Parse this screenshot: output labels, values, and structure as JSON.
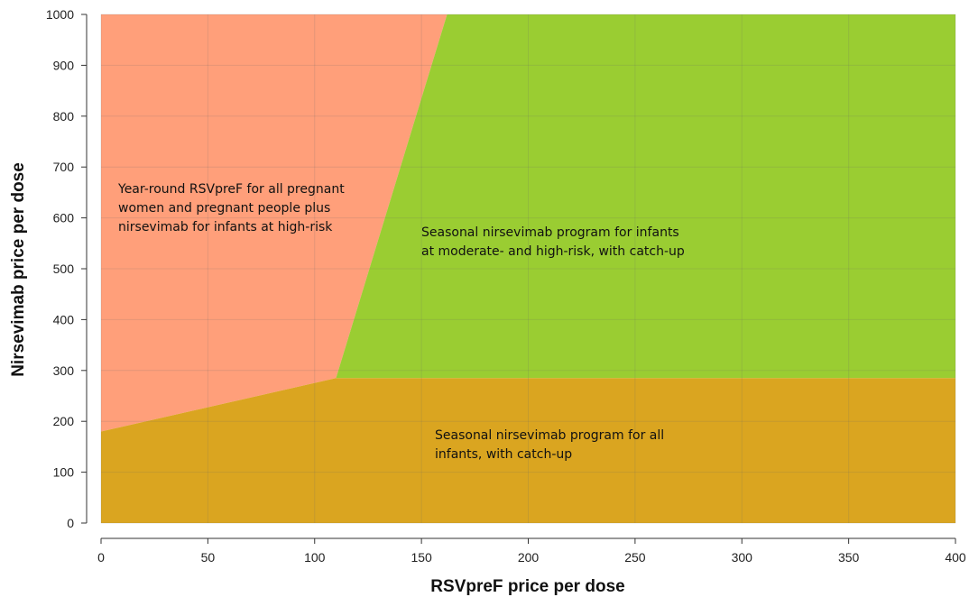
{
  "chart_data": {
    "type": "area",
    "title": "",
    "xlabel": "RSVpreF price per dose",
    "ylabel": "Nirsevimab price per dose",
    "xlim": [
      0,
      400
    ],
    "ylim": [
      0,
      1000
    ],
    "x_ticks": [
      0,
      50,
      100,
      150,
      200,
      250,
      300,
      350,
      400
    ],
    "y_ticks": [
      0,
      100,
      200,
      300,
      400,
      500,
      600,
      700,
      800,
      900,
      1000
    ],
    "grid": true,
    "regions": [
      {
        "name": "Year-round RSVpreF for all pregnant women and pregnant people plus nirsevimab for infants at high-risk",
        "label_lines": [
          "Year-round RSVpreF for all pregnant",
          "women and pregnant people plus",
          "nirsevimab for infants at high-risk"
        ],
        "color": "#ff9f7a",
        "polygon": [
          [
            0,
            180
          ],
          [
            110,
            285
          ],
          [
            162,
            1000
          ],
          [
            0,
            1000
          ]
        ]
      },
      {
        "name": "Seasonal nirsevimab program for infants at moderate- and high-risk, with catch-up",
        "label_lines": [
          "Seasonal nirsevimab program for infants",
          "at moderate- and high-risk, with catch-up"
        ],
        "color": "#9acd32",
        "polygon": [
          [
            110,
            285
          ],
          [
            400,
            285
          ],
          [
            400,
            1000
          ],
          [
            162,
            1000
          ]
        ]
      },
      {
        "name": "Seasonal nirsevimab program for all infants, with catch-up",
        "label_lines": [
          "Seasonal nirsevimab program for all",
          "infants, with catch-up"
        ],
        "color": "#daa520",
        "polygon": [
          [
            0,
            0
          ],
          [
            400,
            0
          ],
          [
            400,
            285
          ],
          [
            110,
            285
          ],
          [
            0,
            180
          ]
        ]
      }
    ]
  }
}
